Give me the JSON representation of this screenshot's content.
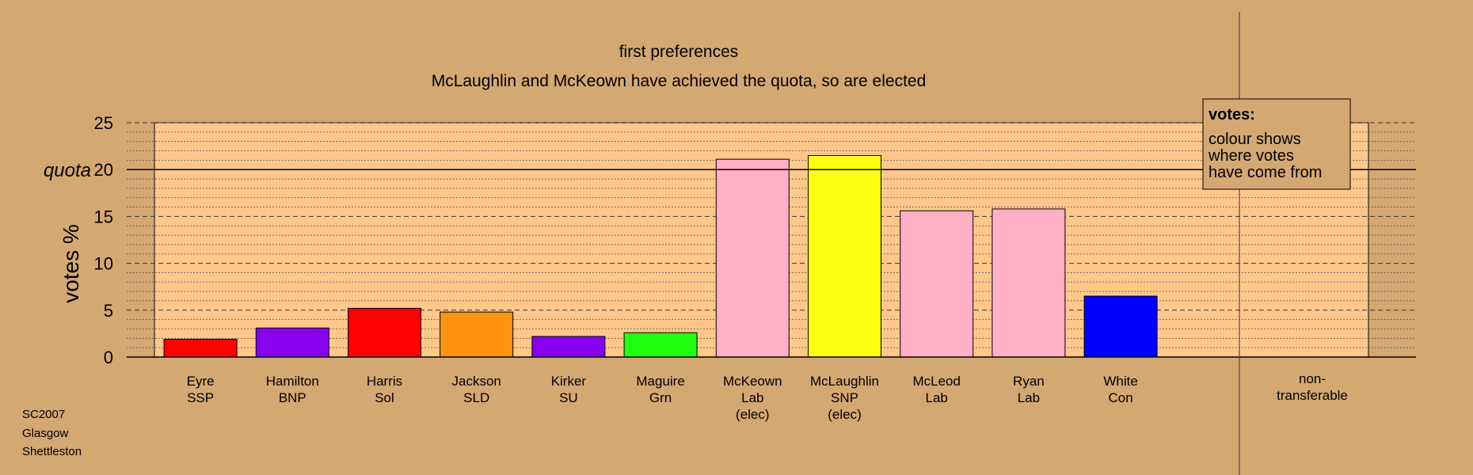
{
  "title": "first preferences",
  "subtitle": "McLaughlin and McKeown have achieved the quota, so are elected",
  "ylabel": "votes %",
  "quota_label": "quota",
  "legend": {
    "heading": "votes:",
    "lines": [
      "colour shows",
      "where votes",
      "have come from"
    ]
  },
  "footer": [
    "SC2007",
    "Glasgow",
    "Shettleston"
  ],
  "colors": {
    "background": "#d4a873",
    "plot_area": "#ffc88a",
    "SSP": "#ff0000",
    "BNP": "#8800ee",
    "Sol": "#ff0000",
    "SLD": "#ff9410",
    "SU": "#8800ee",
    "Grn": "#22ff11",
    "Lab": "#ffb0c5",
    "SNP": "#ffff11",
    "Con": "#0000ff"
  },
  "chart_data": {
    "type": "bar",
    "ylim": [
      0,
      25
    ],
    "yticks": [
      0,
      5,
      10,
      15,
      20,
      25
    ],
    "quota": 20,
    "grid": true,
    "categories": [
      [
        "Eyre",
        "SSP"
      ],
      [
        "Hamilton",
        "BNP"
      ],
      [
        "Harris",
        "Sol"
      ],
      [
        "Jackson",
        "SLD"
      ],
      [
        "Kirker",
        "SU"
      ],
      [
        "Maguire",
        "Grn"
      ],
      [
        "McKeown",
        "Lab",
        "(elec)"
      ],
      [
        "McLaughlin",
        "SNP",
        "(elec)"
      ],
      [
        "McLeod",
        "Lab"
      ],
      [
        "Ryan",
        "Lab"
      ],
      [
        "White",
        "Con"
      ]
    ],
    "parties": [
      "SSP",
      "BNP",
      "Sol",
      "SLD",
      "SU",
      "Grn",
      "Lab",
      "SNP",
      "Lab",
      "Lab",
      "Con"
    ],
    "values": [
      1.9,
      3.1,
      5.2,
      4.8,
      2.2,
      2.6,
      21.1,
      21.5,
      15.6,
      15.8,
      6.5
    ],
    "nontransferable": {
      "label": [
        "non-",
        "transferable"
      ],
      "value": 0
    }
  }
}
